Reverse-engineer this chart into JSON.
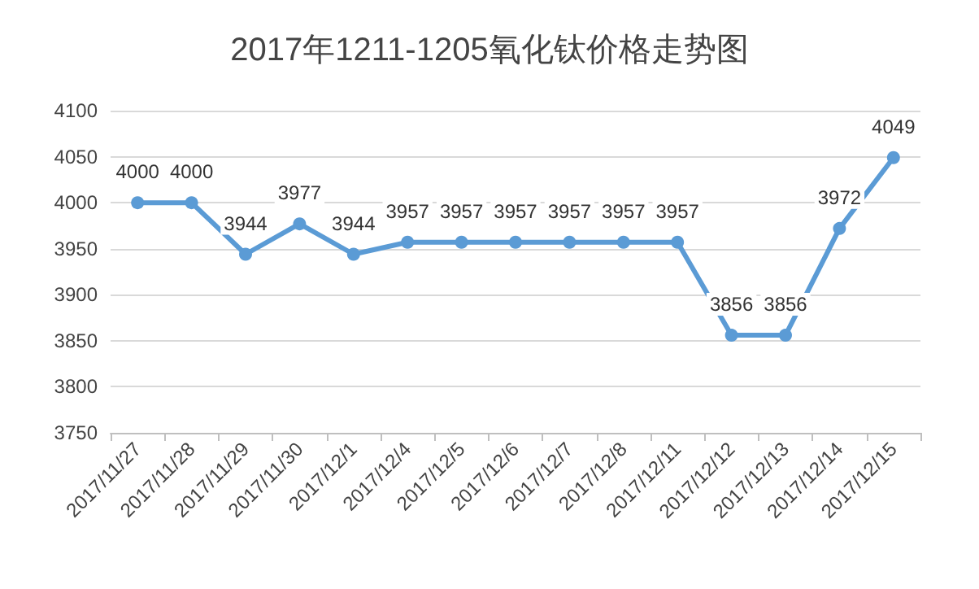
{
  "chart_data": {
    "type": "line",
    "title": "2017年1211-1205氧化钛价格走势图",
    "categories": [
      "2017/11/27",
      "2017/11/28",
      "2017/11/29",
      "2017/11/30",
      "2017/12/1",
      "2017/12/4",
      "2017/12/5",
      "2017/12/6",
      "2017/12/7",
      "2017/12/8",
      "2017/12/11",
      "2017/12/12",
      "2017/12/13",
      "2017/12/14",
      "2017/12/15"
    ],
    "series": [
      {
        "color": "#5b9bd5",
        "values": [
          4000,
          4000,
          3944,
          3977,
          3944,
          3957,
          3957,
          3957,
          3957,
          3957,
          3957,
          3856,
          3856,
          3972,
          4049
        ]
      }
    ],
    "ylim": [
      3750,
      4100
    ],
    "yticks": [
      3750,
      3800,
      3850,
      3900,
      3950,
      4000,
      4050,
      4100
    ],
    "grid": "y",
    "marker": "circle",
    "line_style": "solid",
    "data_labels": true
  }
}
